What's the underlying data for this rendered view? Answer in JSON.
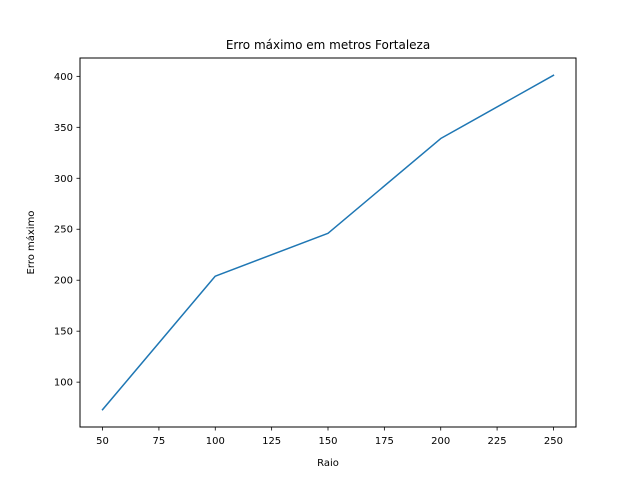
{
  "chart_data": {
    "type": "line",
    "title": "Erro máximo em metros Fortaleza",
    "xlabel": "Raio",
    "ylabel": "Erro máximo",
    "x": [
      50,
      100,
      150,
      200,
      250
    ],
    "series": [
      {
        "values": [
          73,
          204,
          246,
          339,
          401
        ]
      }
    ],
    "xlim": [
      40,
      260
    ],
    "ylim": [
      56,
      418
    ],
    "xticks": [
      50,
      75,
      100,
      125,
      150,
      175,
      200,
      225,
      250
    ],
    "yticks": [
      100,
      150,
      200,
      250,
      300,
      350,
      400
    ],
    "grid": false,
    "line_color": "#1f77b4"
  }
}
